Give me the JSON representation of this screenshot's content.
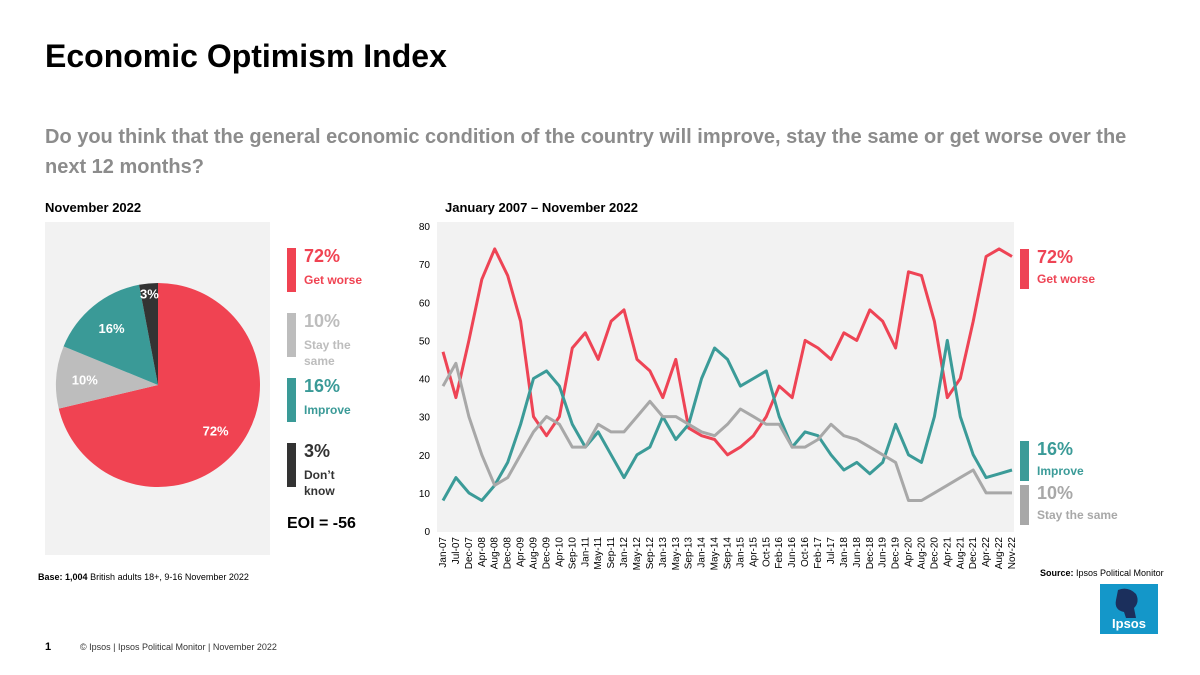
{
  "title": "Economic Optimism Index",
  "subtitle": "Do you think that the general economic condition of the country will improve, stay the same or get worse over the next 12 months?",
  "base": {
    "label": "Base: 1,004",
    "text": "British adults 18+, 9-16 November 2022"
  },
  "source": {
    "label": "Source:",
    "text": "Ipsos Political Monitor"
  },
  "footer": {
    "page": "1",
    "text": "© Ipsos | Ipsos Political Monitor | November 2022"
  },
  "logo": "Ipsos",
  "chart_data": [
    {
      "type": "pie",
      "subtitle": "November 2022",
      "categories": [
        "Get worse",
        "Stay the same",
        "Improve",
        "Don’t know"
      ],
      "values": [
        72,
        10,
        16,
        3
      ],
      "value_labels": [
        "72%",
        "10%",
        "16%",
        "3%"
      ],
      "colors": [
        "#f04352",
        "#bdbdbd",
        "#3a9a97",
        "#333333"
      ],
      "annotation": "EOI = -56"
    },
    {
      "type": "line",
      "subtitle": "January 2007 – November 2022",
      "categories": [
        "Jan-07",
        "Jul-07",
        "Dec-07",
        "Apr-08",
        "Aug-08",
        "Dec-08",
        "Apr-09",
        "Aug-09",
        "Dec-09",
        "Apr-10",
        "Sep-10",
        "Jan-11",
        "May-11",
        "Sep-11",
        "Jan-12",
        "May-12",
        "Sep-12",
        "Jan-13",
        "May-13",
        "Sep-13",
        "Jan-14",
        "May-14",
        "Sep-14",
        "Jan-15",
        "Apr-15",
        "Oct-15",
        "Feb-16",
        "Jun-16",
        "Oct-16",
        "Feb-17",
        "Jul-17",
        "Jan-18",
        "Jun-18",
        "Dec-18",
        "Jun-19",
        "Dec-19",
        "Apr-20",
        "Aug-20",
        "Dec-20",
        "Apr-21",
        "Aug-21",
        "Dec-21",
        "Apr-22",
        "Aug-22",
        "Nov-22"
      ],
      "series": [
        {
          "name": "Get worse",
          "color": "#ee4455",
          "values": [
            47,
            35,
            50,
            66,
            74,
            67,
            55,
            30,
            25,
            30,
            48,
            52,
            45,
            55,
            58,
            45,
            42,
            35,
            45,
            27,
            25,
            24,
            20,
            22,
            25,
            30,
            38,
            35,
            50,
            48,
            45,
            52,
            50,
            58,
            55,
            48,
            68,
            67,
            55,
            35,
            40,
            55,
            72,
            74,
            72
          ]
        },
        {
          "name": "Improve",
          "color": "#3b9b98",
          "values": [
            8,
            14,
            10,
            8,
            12,
            18,
            28,
            40,
            42,
            38,
            28,
            22,
            26,
            20,
            14,
            20,
            22,
            30,
            24,
            28,
            40,
            48,
            45,
            38,
            40,
            42,
            30,
            22,
            26,
            25,
            20,
            16,
            18,
            15,
            18,
            28,
            20,
            18,
            30,
            50,
            30,
            20,
            14,
            15,
            16
          ]
        },
        {
          "name": "Stay the same",
          "color": "#a8a8a8",
          "values": [
            38,
            44,
            30,
            20,
            12,
            14,
            20,
            26,
            30,
            28,
            22,
            22,
            28,
            26,
            26,
            30,
            34,
            30,
            30,
            28,
            26,
            25,
            28,
            32,
            30,
            28,
            28,
            22,
            22,
            24,
            28,
            25,
            24,
            22,
            20,
            18,
            8,
            8,
            10,
            12,
            14,
            16,
            10,
            10,
            10
          ]
        }
      ],
      "ylim": [
        0,
        80
      ],
      "yticks": [
        0,
        10,
        20,
        30,
        40,
        50,
        60,
        70,
        80
      ],
      "grid": false
    }
  ]
}
